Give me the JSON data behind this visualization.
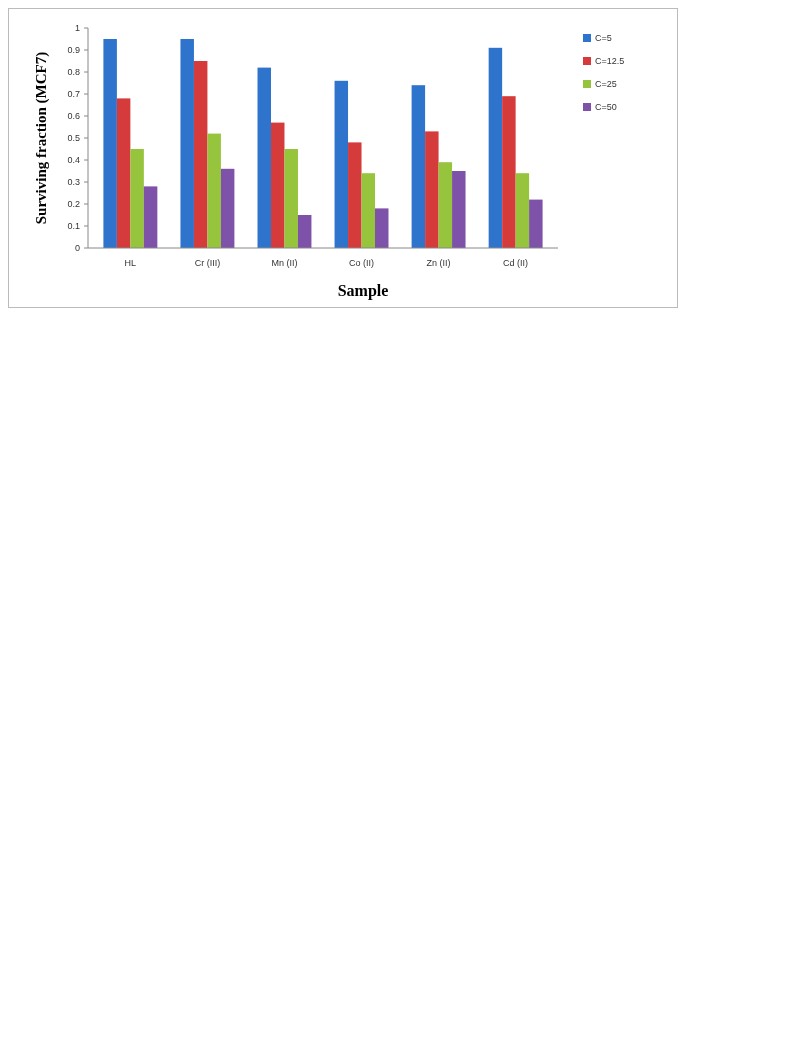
{
  "chart_data": {
    "type": "bar",
    "xlabel": "Sample",
    "ylabel": "Surviving fraction (MCF7)",
    "categories": [
      "HL",
      "Cr (III)",
      "Mn (II)",
      "Co (II)",
      "Zn (II)",
      "Cd (II)"
    ],
    "series": [
      {
        "name": "C=5",
        "color": "#2f74cc",
        "values": [
          0.95,
          0.95,
          0.82,
          0.76,
          0.74,
          0.91
        ]
      },
      {
        "name": "C=12.5",
        "color": "#d63b3b",
        "values": [
          0.68,
          0.85,
          0.57,
          0.48,
          0.53,
          0.69
        ]
      },
      {
        "name": "C=25",
        "color": "#96c43c",
        "values": [
          0.45,
          0.52,
          0.45,
          0.34,
          0.39,
          0.34
        ]
      },
      {
        "name": "C=50",
        "color": "#7e52a8",
        "values": [
          0.28,
          0.36,
          0.15,
          0.18,
          0.35,
          0.22
        ]
      }
    ],
    "ylim": [
      0,
      1
    ],
    "yticks": [
      0,
      0.1,
      0.2,
      0.3,
      0.4,
      0.5,
      0.6,
      0.7,
      0.8,
      0.9,
      1
    ],
    "legend": "right",
    "grid": false
  }
}
